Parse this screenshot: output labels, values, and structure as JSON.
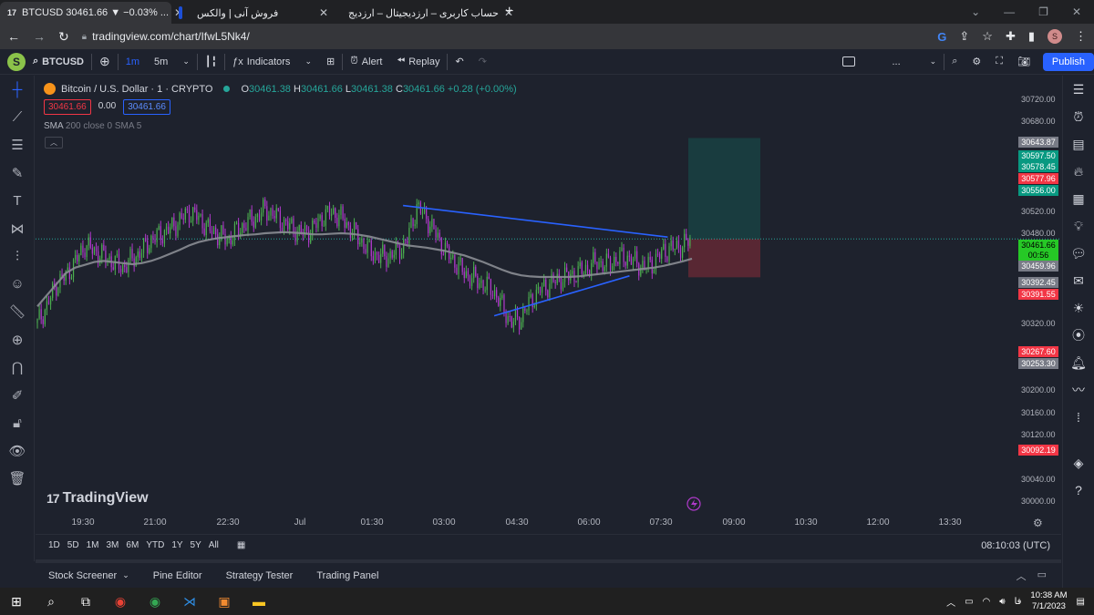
{
  "browser": {
    "tabs": [
      {
        "title": "BTCUSD 30461.66 ▼ −0.03% ...",
        "active": true
      },
      {
        "title": "فروش آنی | والکس",
        "active": false
      },
      {
        "title": "حساب کاربری – ارزدیجیتال – ارزدیج",
        "active": false
      }
    ],
    "url": "tradingview.com/chart/IfwL5Nk4/",
    "profile_initial": "S"
  },
  "toolbar": {
    "avatar": "S",
    "symbol": "BTCUSD",
    "intervals": [
      "1m",
      "5m"
    ],
    "indicators": "Indicators",
    "alert": "Alert",
    "replay": "Replay",
    "more": "...",
    "publish": "Publish"
  },
  "legend": {
    "title": "Bitcoin / U.S. Dollar · 1 · CRYPTO",
    "o_label": "O",
    "o": "30461.38",
    "h_label": "H",
    "h": "30461.66",
    "l_label": "L",
    "l": "30461.38",
    "c_label": "C",
    "c": "30461.66",
    "change": "+0.28 (+0.00%)",
    "sell_price": "30461.66",
    "spread": "0.00",
    "buy_price": "30461.66",
    "indicator": "SMA",
    "indicator_params": "200 close 0 SMA 5",
    "collapse_icon": "chevron-up"
  },
  "watermark": "TradingView",
  "price_axis": {
    "ticks": [
      "30720.00",
      "30680.00",
      "30520.00",
      "30480.00",
      "30320.00",
      "30200.00",
      "30160.00",
      "30120.00",
      "30040.00",
      "30000.00"
    ],
    "labels": [
      {
        "text": "30643.87",
        "color": "#787b86"
      },
      {
        "text": "30597.50",
        "color": "#089981"
      },
      {
        "text": "30578.45",
        "color": "#089981"
      },
      {
        "text": "30577.96",
        "color": "#f23645"
      },
      {
        "text": "30556.00",
        "color": "#089981"
      },
      {
        "text": "30461.66",
        "color": "#26c826"
      },
      {
        "text": "00:56",
        "color": "#26c826"
      },
      {
        "text": "30459.96",
        "color": "#787b86"
      },
      {
        "text": "30392.45",
        "color": "#787b86"
      },
      {
        "text": "30391.55",
        "color": "#f23645"
      },
      {
        "text": "30267.60",
        "color": "#f23645"
      },
      {
        "text": "30253.30",
        "color": "#787b86"
      },
      {
        "text": "30092.19",
        "color": "#f23645"
      }
    ]
  },
  "time_axis": [
    "19:30",
    "21:00",
    "22:30",
    "Jul",
    "01:30",
    "03:00",
    "04:30",
    "06:00",
    "07:30",
    "09:00",
    "10:30",
    "12:00",
    "13:30"
  ],
  "ranges": [
    "1D",
    "5D",
    "1M",
    "3M",
    "6M",
    "YTD",
    "1Y",
    "5Y",
    "All"
  ],
  "clock": "08:10:03 (UTC)",
  "bottom_tabs": [
    "Stock Screener",
    "Pine Editor",
    "Strategy Tester",
    "Trading Panel"
  ],
  "taskbar": {
    "lang": "فا",
    "time": "10:38 AM",
    "date": "7/1/2023"
  },
  "chart_data": {
    "type": "candlestick",
    "symbol": "BTCUSD",
    "interval": "1",
    "last_price": 30461.66,
    "ylim": [
      30000,
      30740
    ],
    "x_ticks": [
      "19:30",
      "21:00",
      "22:30",
      "Jul",
      "01:30",
      "03:00",
      "04:30",
      "06:00",
      "07:30",
      "09:00",
      "10:30",
      "12:00",
      "13:30"
    ],
    "close_series": [
      30310,
      30340,
      30380,
      30395,
      30420,
      30450,
      30440,
      30430,
      30420,
      30410,
      30425,
      30440,
      30460,
      30470,
      30480,
      30495,
      30510,
      30500,
      30480,
      30470,
      30460,
      30475,
      30490,
      30500,
      30515,
      30505,
      30490,
      30480,
      30470,
      30480,
      30500,
      30510,
      30500,
      30480,
      30460,
      30440,
      30430,
      30430,
      30440,
      30460,
      30520,
      30500,
      30470,
      30440,
      30420,
      30400,
      30390,
      30380,
      30370,
      30340,
      30310,
      30320,
      30350,
      30370,
      30380,
      30390,
      30395,
      30400,
      30410,
      30420,
      30415,
      30425,
      30430,
      30420,
      30410,
      30420,
      30440,
      30445,
      30450,
      30461.66
    ],
    "sma_series": [
      30340,
      30360,
      30380,
      30400,
      30410,
      30415,
      30420,
      30422,
      30420,
      30418,
      30416,
      30418,
      30422,
      30428,
      30435,
      30442,
      30450,
      30456,
      30460,
      30463,
      30465,
      30467,
      30469,
      30470,
      30472,
      30473,
      30474,
      30473,
      30472,
      30470,
      30470,
      30471,
      30472,
      30471,
      30469,
      30466,
      30462,
      30458,
      30454,
      30450,
      30448,
      30446,
      30443,
      30440,
      30436,
      30432,
      30426,
      30420,
      30413,
      30406,
      30400,
      30396,
      30394,
      30393,
      30393,
      30393,
      30393,
      30394,
      30396,
      30398,
      30400,
      30402,
      30404,
      30406,
      30408,
      30410,
      30413,
      30417,
      30421,
      30426
    ],
    "trendlines": [
      {
        "name": "upper",
        "from": {
          "t": 0.375,
          "p": 30522
        },
        "to": {
          "t": 0.645,
          "p": 30465
        }
      },
      {
        "name": "lower",
        "from": {
          "t": 0.468,
          "p": 30323
        },
        "to": {
          "t": 0.606,
          "p": 30395
        }
      }
    ],
    "position": {
      "type": "long",
      "entry": 30461.66,
      "target": 30643.87,
      "stop": 30392.45
    }
  }
}
